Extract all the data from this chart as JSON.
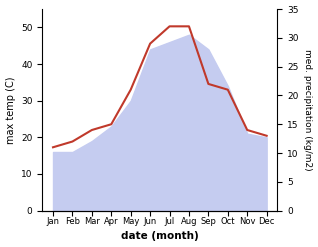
{
  "months": [
    "Jan",
    "Feb",
    "Mar",
    "Apr",
    "May",
    "Jun",
    "Jul",
    "Aug",
    "Sep",
    "Oct",
    "Nov",
    "Dec"
  ],
  "temp": [
    16,
    16,
    19,
    23,
    30,
    44,
    46,
    48,
    44,
    34,
    21,
    20
  ],
  "precip": [
    11,
    12,
    14,
    15,
    21,
    29,
    32,
    32,
    22,
    21,
    14,
    13
  ],
  "precip_color": "#c0392b",
  "temp_fill_color": "#c5ccf0",
  "temp_ylim": [
    0,
    55
  ],
  "precip_ylim": [
    0,
    35
  ],
  "temp_yticks": [
    0,
    10,
    20,
    30,
    40,
    50
  ],
  "precip_yticks": [
    0,
    5,
    10,
    15,
    20,
    25,
    30,
    35
  ],
  "xlabel": "date (month)",
  "ylabel_left": "max temp (C)",
  "ylabel_right": "med. precipitation (kg/m2)",
  "background_color": "#ffffff"
}
